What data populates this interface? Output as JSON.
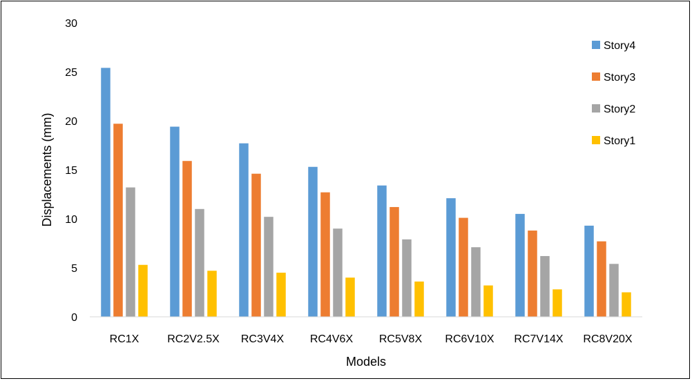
{
  "chart_data": {
    "type": "bar",
    "title": "",
    "xlabel": "Models",
    "ylabel": "Displacements (mm)",
    "ylim": [
      0,
      30
    ],
    "yticks": [
      0,
      5,
      10,
      15,
      20,
      25,
      30
    ],
    "grid": false,
    "legend_position": "right",
    "categories": [
      "RC1X",
      "RC2V2.5X",
      "RC3V4X",
      "RC4V6X",
      "RC5V8X",
      "RC6V10X",
      "RC7V14X",
      "RC8V20X"
    ],
    "series": [
      {
        "name": "Story4",
        "color": "#5B9BD5",
        "values": [
          25.4,
          19.4,
          17.7,
          15.3,
          13.4,
          12.1,
          10.5,
          9.3
        ]
      },
      {
        "name": "Story3",
        "color": "#ED7D31",
        "values": [
          19.7,
          15.9,
          14.6,
          12.7,
          11.2,
          10.1,
          8.8,
          7.7
        ]
      },
      {
        "name": "Story2",
        "color": "#A5A5A5",
        "values": [
          13.2,
          11.0,
          10.2,
          9.0,
          7.9,
          7.1,
          6.2,
          5.4
        ]
      },
      {
        "name": "Story1",
        "color": "#FFC000",
        "values": [
          5.3,
          4.7,
          4.5,
          4.0,
          3.6,
          3.2,
          2.8,
          2.5
        ]
      }
    ]
  }
}
